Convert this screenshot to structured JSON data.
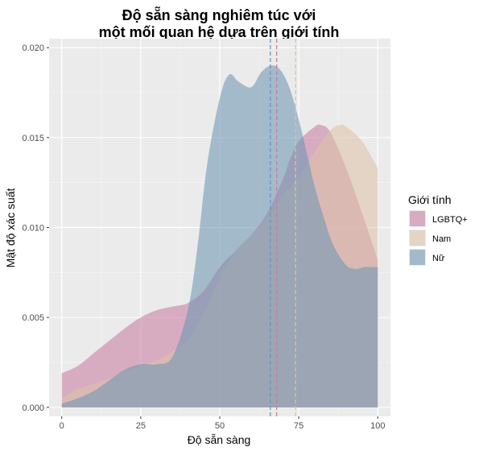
{
  "chart_data": {
    "type": "area",
    "title_line1": "Độ sẵn sàng nghiêm túc với",
    "title_line2": "một mối quan hệ dựa trên giới tính",
    "xlabel": "Độ sẵn sàng",
    "ylabel": "Mật độ xác suất",
    "xlim": [
      -4,
      104
    ],
    "ylim": [
      -0.0005,
      0.0205
    ],
    "x_ticks": [
      0,
      25,
      50,
      75,
      100
    ],
    "x_tick_labels": [
      "0",
      "25",
      "50",
      "75",
      "100"
    ],
    "y_ticks": [
      0.0,
      0.005,
      0.01,
      0.015,
      0.02
    ],
    "y_tick_labels": [
      "0.000",
      "0.005",
      "0.010",
      "0.015",
      "0.020"
    ],
    "grid": true,
    "legend_title": "Giới tính",
    "legend_position": "right",
    "series": [
      {
        "name": "LGBTQ+",
        "color": "#c87ea0",
        "mean": 68,
        "x": [
          0,
          5,
          10,
          15,
          20,
          25,
          30,
          35,
          40,
          45,
          50,
          55,
          60,
          65,
          70,
          72,
          75,
          80,
          82,
          85,
          90,
          95,
          100
        ],
        "y": [
          0.0019,
          0.0023,
          0.003,
          0.0037,
          0.0044,
          0.005,
          0.0054,
          0.0056,
          0.0058,
          0.0065,
          0.0078,
          0.0087,
          0.0096,
          0.0108,
          0.0127,
          0.0137,
          0.0148,
          0.0156,
          0.0157,
          0.0153,
          0.0133,
          0.0108,
          0.0082
        ]
      },
      {
        "name": "Nam",
        "color": "#dcc2a8",
        "mean": 74,
        "x": [
          0,
          5,
          10,
          15,
          20,
          25,
          30,
          35,
          40,
          45,
          50,
          55,
          60,
          65,
          70,
          75,
          80,
          85,
          88,
          90,
          95,
          100
        ],
        "y": [
          0.0005,
          0.001,
          0.0013,
          0.0016,
          0.002,
          0.0023,
          0.0026,
          0.0031,
          0.0038,
          0.0052,
          0.0072,
          0.0087,
          0.0096,
          0.0105,
          0.0118,
          0.0128,
          0.0142,
          0.0154,
          0.0157,
          0.0156,
          0.0148,
          0.0133
        ]
      },
      {
        "name": "Nữ",
        "color": "#6e96b4",
        "mean": 66,
        "x": [
          0,
          5,
          10,
          15,
          20,
          25,
          30,
          35,
          40,
          43,
          46,
          50,
          53,
          56,
          60,
          63,
          66,
          69,
          72,
          75,
          78,
          80,
          83,
          86,
          90,
          93,
          96,
          100
        ],
        "y": [
          0.0002,
          0.0005,
          0.0009,
          0.0015,
          0.0021,
          0.0024,
          0.0024,
          0.0028,
          0.0055,
          0.009,
          0.0135,
          0.0172,
          0.0185,
          0.0181,
          0.0178,
          0.0186,
          0.019,
          0.0188,
          0.0178,
          0.016,
          0.0138,
          0.0123,
          0.0105,
          0.009,
          0.0079,
          0.0077,
          0.0078,
          0.0078
        ]
      }
    ]
  }
}
